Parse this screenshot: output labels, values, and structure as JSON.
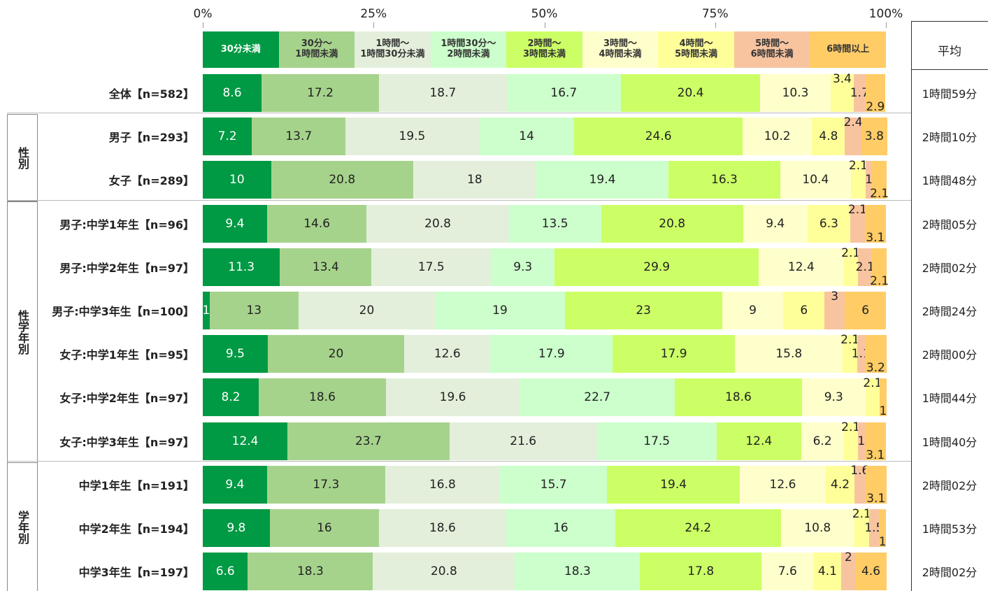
{
  "chart_data": {
    "type": "stacked_barh",
    "categories": [
      "全体【n=582】",
      "男子【n=293】",
      "女子【n=289】",
      "男子:中学1年生【n=96】",
      "男子:中学2年生【n=97】",
      "男子:中学3年生【n=100】",
      "女子:中学1年生【n=95】",
      "女子:中学2年生【n=97】",
      "女子:中学3年生【n=97】",
      "中学1年生【n=191】",
      "中学2年生【n=194】",
      "中学3年生【n=197】"
    ],
    "groups": [
      "性別",
      "性学年別",
      "学年別"
    ],
    "xlim": [
      0,
      100
    ],
    "xticks": [
      {
        "value": 0,
        "label": "0%"
      },
      {
        "value": 25,
        "label": "25%"
      },
      {
        "value": 50,
        "label": "50%"
      },
      {
        "value": 75,
        "label": "75%"
      },
      {
        "value": 100,
        "label": "100%"
      }
    ],
    "series": [
      {
        "name": "30分未満",
        "color": "#009944",
        "values": [
          8.6,
          7.2,
          10.0,
          9.4,
          11.3,
          1.0,
          9.5,
          8.2,
          12.4,
          9.4,
          9.8,
          6.6
        ]
      },
      {
        "name": "30分～\n1時間未満",
        "color": "#a6d38c",
        "values": [
          17.2,
          13.7,
          20.8,
          14.6,
          13.4,
          13.0,
          20.0,
          18.6,
          23.7,
          17.3,
          16.0,
          18.3
        ]
      },
      {
        "name": "1時間～\n1時間30分未満",
        "color": "#e3efdb",
        "values": [
          18.7,
          19.5,
          18.0,
          20.8,
          17.5,
          20.0,
          12.6,
          19.6,
          21.6,
          16.8,
          18.6,
          20.8
        ]
      },
      {
        "name": "1時間30分～\n2時間未満",
        "color": "#ccffcc",
        "values": [
          16.7,
          14.0,
          19.4,
          13.5,
          9.3,
          19.0,
          17.9,
          22.7,
          17.5,
          15.7,
          16.0,
          18.3
        ]
      },
      {
        "name": "2時間～\n3時間未満",
        "color": "#ccff66",
        "values": [
          20.4,
          24.6,
          16.3,
          20.8,
          29.9,
          23.0,
          17.9,
          18.6,
          12.4,
          19.4,
          24.2,
          17.8
        ]
      },
      {
        "name": "3時間～\n4時間未満",
        "color": "#ffffcc",
        "values": [
          10.3,
          10.2,
          10.4,
          9.4,
          12.4,
          9.0,
          15.8,
          9.3,
          6.2,
          12.6,
          10.8,
          7.6
        ]
      },
      {
        "name": "4時間～\n5時間未満",
        "color": "#ffff99",
        "values": [
          3.4,
          4.8,
          2.1,
          6.3,
          2.1,
          6.0,
          2.1,
          2.1,
          2.1,
          4.2,
          2.1,
          4.1
        ]
      },
      {
        "name": "5時間～\n6時間未満",
        "color": "#f8c4a0",
        "values": [
          1.7,
          2.4,
          1.0,
          2.1,
          2.1,
          3.0,
          1.1,
          null,
          1.0,
          1.6,
          1.5,
          2.0
        ]
      },
      {
        "name": "6時間以上",
        "color": "#ffcc66",
        "values": [
          2.9,
          3.8,
          2.1,
          3.1,
          2.1,
          6.0,
          3.2,
          1.0,
          3.1,
          3.1,
          1.0,
          4.6
        ]
      }
    ],
    "average_header": "平均",
    "averages": [
      "1時間59分",
      "2時間10分",
      "1時間48分",
      "2時間05分",
      "2時間02分",
      "2時間24分",
      "2時間00分",
      "1時間44分",
      "1時間40分",
      "2時間02分",
      "1時間53分",
      "2時間02分"
    ]
  }
}
